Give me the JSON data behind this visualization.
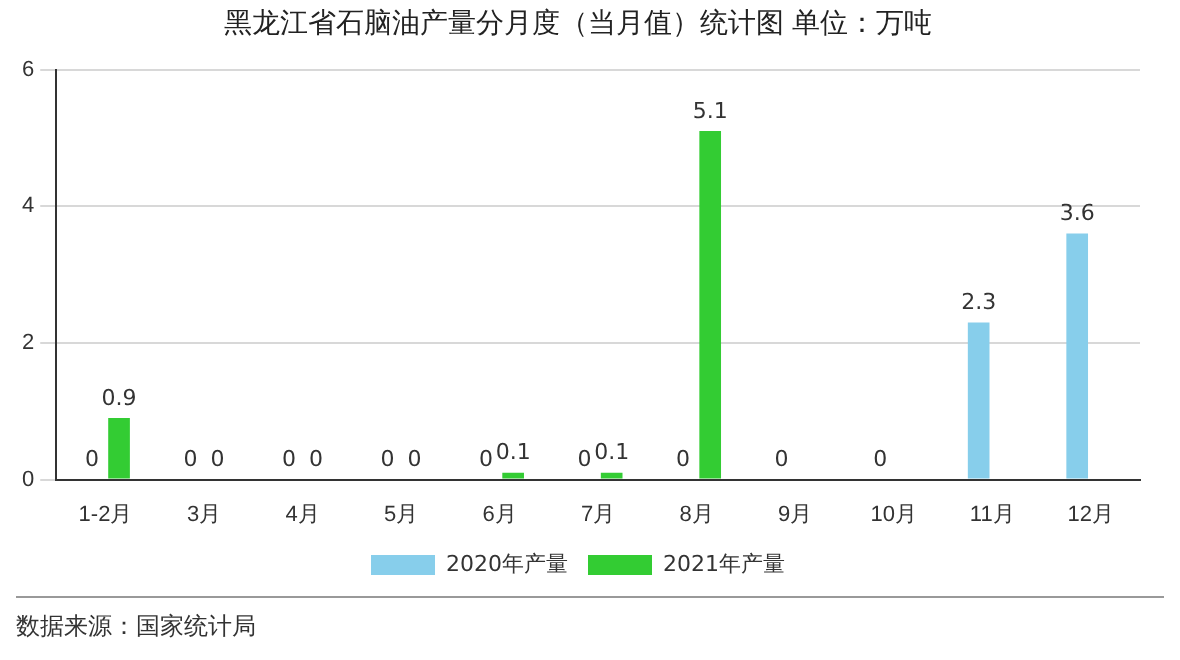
{
  "chart_data": {
    "type": "bar",
    "title": "黑龙江省石脑油产量分月度（当月值）统计图 单位：万吨",
    "categories": [
      "1-2月",
      "3月",
      "4月",
      "5月",
      "6月",
      "7月",
      "8月",
      "9月",
      "10月",
      "11月",
      "12月"
    ],
    "series": [
      {
        "name": "2020年产量",
        "color": "#87ceeb",
        "values": [
          0,
          0,
          0,
          0,
          0,
          0,
          0,
          0,
          0,
          2.3,
          3.6
        ]
      },
      {
        "name": "2021年产量",
        "color": "#33cc33",
        "values": [
          0.9,
          0,
          0,
          0,
          0.1,
          0.1,
          5.1,
          null,
          null,
          null,
          null
        ]
      }
    ],
    "ylim": [
      0,
      6
    ],
    "yticks": [
      0,
      2,
      4,
      6
    ],
    "grid": "y",
    "legend": "bottom",
    "data_labels": true,
    "annotations": [
      "数据来源：国家统计局"
    ]
  }
}
